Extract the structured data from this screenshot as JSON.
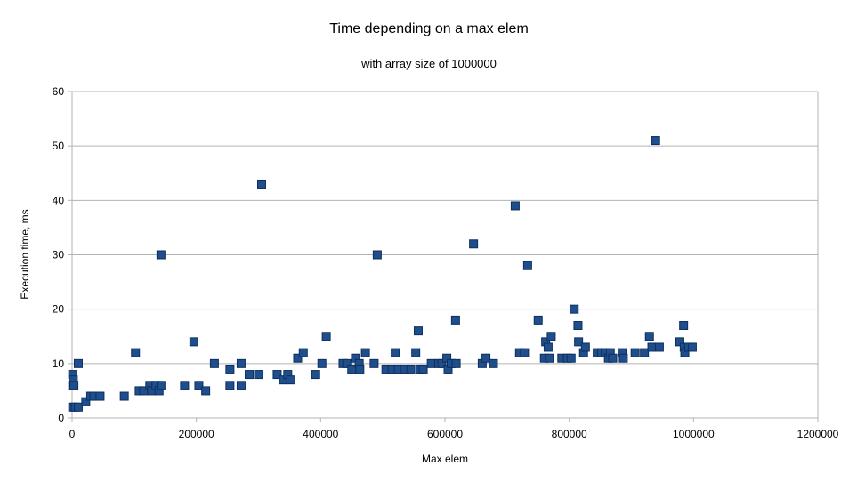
{
  "chart_data": {
    "type": "scatter",
    "title": "Time depending on a max elem",
    "subtitle": "with array size of 1000000",
    "xlabel": "Max elem",
    "ylabel": "Execution time, ms",
    "xlim": [
      0,
      1200000
    ],
    "ylim": [
      0,
      60
    ],
    "x_ticks": [
      "0",
      "200000",
      "400000",
      "600000",
      "800000",
      "1000000",
      "1200000"
    ],
    "y_ticks": [
      "0",
      "10",
      "20",
      "30",
      "40",
      "50",
      "60"
    ],
    "grid": true,
    "legend": "none",
    "marker_color": "#1f4e8c",
    "points": [
      [
        1000,
        8
      ],
      [
        1000,
        6
      ],
      [
        2000,
        7
      ],
      [
        3000,
        6
      ],
      [
        1000,
        2
      ],
      [
        5000,
        2
      ],
      [
        10000,
        2
      ],
      [
        10000,
        10
      ],
      [
        22000,
        3
      ],
      [
        30000,
        4
      ],
      [
        35000,
        4
      ],
      [
        45000,
        4
      ],
      [
        84000,
        4
      ],
      [
        102000,
        12
      ],
      [
        108000,
        5
      ],
      [
        115000,
        5
      ],
      [
        125000,
        6
      ],
      [
        128000,
        5
      ],
      [
        135000,
        6
      ],
      [
        140000,
        5
      ],
      [
        143000,
        6
      ],
      [
        143000,
        30
      ],
      [
        181000,
        6
      ],
      [
        196000,
        14
      ],
      [
        204000,
        6
      ],
      [
        215000,
        5
      ],
      [
        229000,
        10
      ],
      [
        254000,
        6
      ],
      [
        254000,
        9
      ],
      [
        272000,
        6
      ],
      [
        272000,
        10
      ],
      [
        285000,
        8
      ],
      [
        300000,
        8
      ],
      [
        305000,
        43
      ],
      [
        330000,
        8
      ],
      [
        340000,
        7
      ],
      [
        347000,
        8
      ],
      [
        352000,
        7
      ],
      [
        363000,
        11
      ],
      [
        372000,
        12
      ],
      [
        392000,
        8
      ],
      [
        402000,
        10
      ],
      [
        409000,
        15
      ],
      [
        436000,
        10
      ],
      [
        442000,
        10
      ],
      [
        450000,
        9
      ],
      [
        456000,
        11
      ],
      [
        462000,
        10
      ],
      [
        463000,
        9
      ],
      [
        472000,
        12
      ],
      [
        486000,
        10
      ],
      [
        491000,
        30
      ],
      [
        505000,
        9
      ],
      [
        515000,
        9
      ],
      [
        520000,
        12
      ],
      [
        525000,
        9
      ],
      [
        535000,
        9
      ],
      [
        545000,
        9
      ],
      [
        553000,
        12
      ],
      [
        557000,
        16
      ],
      [
        560000,
        9
      ],
      [
        565000,
        9
      ],
      [
        578000,
        10
      ],
      [
        590000,
        10
      ],
      [
        595000,
        10
      ],
      [
        603000,
        11
      ],
      [
        605000,
        9
      ],
      [
        610000,
        10
      ],
      [
        617000,
        18
      ],
      [
        618000,
        10
      ],
      [
        646000,
        32
      ],
      [
        660000,
        10
      ],
      [
        666000,
        11
      ],
      [
        678000,
        10
      ],
      [
        713000,
        39
      ],
      [
        720000,
        12
      ],
      [
        728000,
        12
      ],
      [
        733000,
        28
      ],
      [
        750000,
        18
      ],
      [
        760000,
        11
      ],
      [
        762000,
        14
      ],
      [
        766000,
        13
      ],
      [
        768000,
        11
      ],
      [
        771000,
        15
      ],
      [
        788000,
        11
      ],
      [
        797000,
        11
      ],
      [
        803000,
        11
      ],
      [
        808000,
        20
      ],
      [
        814000,
        17
      ],
      [
        815000,
        14
      ],
      [
        823000,
        12
      ],
      [
        826000,
        13
      ],
      [
        845000,
        12
      ],
      [
        852000,
        12
      ],
      [
        858000,
        12
      ],
      [
        863000,
        11
      ],
      [
        866000,
        12
      ],
      [
        870000,
        11
      ],
      [
        885000,
        12
      ],
      [
        887000,
        11
      ],
      [
        906000,
        12
      ],
      [
        921000,
        12
      ],
      [
        929000,
        15
      ],
      [
        933000,
        13
      ],
      [
        939000,
        51
      ],
      [
        945000,
        13
      ],
      [
        978000,
        14
      ],
      [
        984000,
        17
      ],
      [
        985000,
        13
      ],
      [
        986000,
        12
      ],
      [
        992000,
        13
      ],
      [
        998000,
        13
      ]
    ]
  }
}
